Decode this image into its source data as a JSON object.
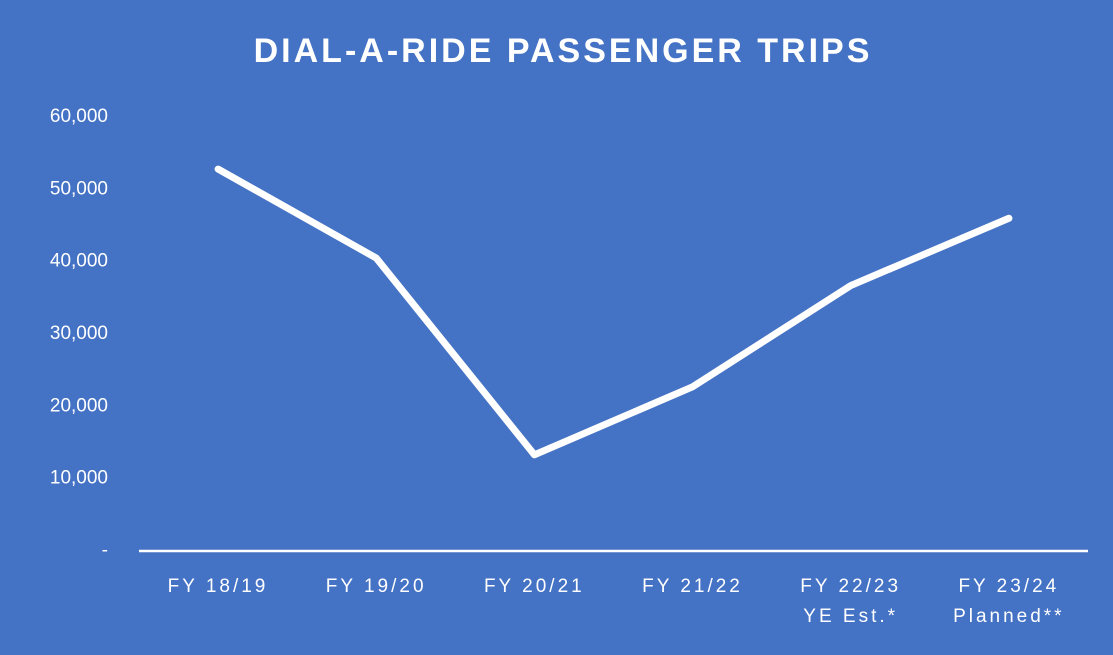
{
  "chart_data": {
    "type": "line",
    "title": "DIAL-A-RIDE PASSENGER TRIPS",
    "categories": [
      "FY 18/19",
      "FY 19/20",
      "FY 20/21",
      "FY 21/22",
      "FY 22/23\nYE Est.*",
      "FY 23/24\nPlanned**"
    ],
    "series": [
      {
        "name": "Passenger Trips",
        "color": "#ffffff",
        "values": [
          52800,
          40500,
          13300,
          22700,
          36700,
          46000
        ]
      }
    ],
    "ylim": [
      0,
      60000
    ],
    "yticks": [
      {
        "value": 0,
        "label": "-"
      },
      {
        "value": 10000,
        "label": "10,000"
      },
      {
        "value": 20000,
        "label": "20,000"
      },
      {
        "value": 30000,
        "label": "30,000"
      },
      {
        "value": 40000,
        "label": "40,000"
      },
      {
        "value": 50000,
        "label": "50,000"
      },
      {
        "value": 60000,
        "label": "60,000"
      }
    ],
    "grid": false,
    "background": "#4472c4"
  }
}
